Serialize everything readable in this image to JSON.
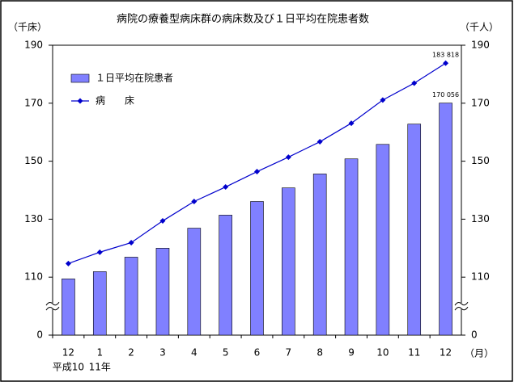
{
  "chart_data": {
    "type": "bar_line",
    "title": "病院の療養型病床群の病床数及び１日平均在院患者数",
    "y_label": "（千床）",
    "y2_label": "（千人）",
    "x_unit_label": "（月）",
    "categories": [
      "12",
      "1",
      "2",
      "3",
      "4",
      "5",
      "6",
      "7",
      "8",
      "9",
      "10",
      "11",
      "12"
    ],
    "x_sublabels": [
      "平成10",
      "11年"
    ],
    "series": [
      {
        "name": "１日平均在院患者",
        "type": "bar",
        "axis": "y2",
        "color": "#8080ff",
        "values": [
          106.7,
          111.9,
          116.9,
          120.0,
          126.9,
          131.4,
          136.1,
          140.8,
          145.6,
          150.8,
          155.8,
          162.8,
          170.056
        ],
        "value_labels": [
          null,
          null,
          null,
          null,
          null,
          null,
          null,
          null,
          null,
          null,
          null,
          null,
          "170 056"
        ]
      },
      {
        "name": "病　　床",
        "type": "line",
        "color": "#0000cc",
        "values": [
          114.7,
          118.6,
          121.9,
          129.4,
          136.1,
          141.1,
          146.4,
          151.4,
          156.7,
          163.1,
          171.1,
          176.9,
          183.818
        ],
        "value_labels": [
          null,
          null,
          null,
          null,
          null,
          null,
          null,
          null,
          null,
          null,
          null,
          null,
          "183 818"
        ]
      }
    ],
    "ylim": [
      0,
      190
    ],
    "yticks": [
      0,
      110,
      130,
      150,
      170,
      190
    ],
    "y2lim": [
      0,
      190
    ],
    "y2ticks": [
      0,
      110,
      130,
      150,
      170,
      190
    ],
    "axis_break": true,
    "legend": "upper left"
  }
}
